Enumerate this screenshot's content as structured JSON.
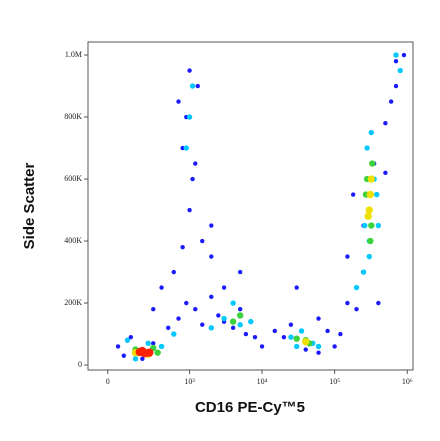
{
  "chart_data": {
    "type": "scatter",
    "x_label": "CD16 PE-Cy™5",
    "y_label": "Side Scatter",
    "xscale": "asinh",
    "xlim": [
      -100,
      1200000
    ],
    "ylim": [
      -16000,
      1042000
    ],
    "xticks": [
      0,
      {
        "value": 1000,
        "label": "10³"
      },
      {
        "value": 10000,
        "label": "10⁴"
      },
      {
        "value": 100000,
        "label": "10⁵"
      },
      {
        "value": 1000000,
        "label": "10⁶"
      }
    ],
    "yticks": [
      0,
      {
        "value": 200000,
        "label": "200K"
      },
      {
        "value": 400000,
        "label": "400K"
      },
      {
        "value": 600000,
        "label": "600K"
      },
      {
        "value": 800000,
        "label": "800K"
      },
      {
        "value": 1000000,
        "label": "1.0M"
      }
    ],
    "series": [
      {
        "color": "#1a1aff",
        "x": [
          50,
          120,
          300,
          500,
          80,
          700,
          900,
          1200,
          1500,
          2000,
          2500,
          3000,
          4000,
          5000,
          6000,
          8000,
          10000,
          15000,
          20000,
          25000,
          40000,
          60000,
          80000,
          100000,
          150000,
          200000,
          250000,
          400000,
          500000,
          700000,
          800000,
          900000,
          1000,
          1100,
          800,
          900,
          1300,
          1000,
          1200,
          700,
          600,
          1500,
          2000,
          3000,
          400,
          300,
          200,
          150000,
          120000,
          180000,
          500000,
          600000,
          700000,
          350000,
          250000,
          30000,
          60000,
          5000,
          2000,
          800
        ],
        "y": [
          60000,
          90000,
          70000,
          120000,
          30000,
          150000,
          200000,
          180000,
          130000,
          220000,
          160000,
          140000,
          120000,
          180000,
          100000,
          90000,
          60000,
          110000,
          90000,
          130000,
          50000,
          40000,
          110000,
          60000,
          200000,
          180000,
          300000,
          200000,
          780000,
          900000,
          950000,
          1000000,
          500000,
          600000,
          700000,
          800000,
          900000,
          950000,
          650000,
          850000,
          300000,
          400000,
          350000,
          250000,
          250000,
          180000,
          20000,
          350000,
          100000,
          550000,
          620000,
          850000,
          980000,
          650000,
          450000,
          250000,
          150000,
          300000,
          450000,
          380000
        ]
      },
      {
        "color": "#00c8ff",
        "x": [
          100,
          250,
          400,
          150,
          3000,
          5000,
          4000,
          7000,
          25000,
          35000,
          50000,
          60000,
          250000,
          300000,
          350000,
          280000,
          320000,
          260000,
          380000,
          300000,
          1000,
          900,
          1100,
          800000,
          700000,
          2000,
          600,
          200000,
          400000,
          30000
        ],
        "y": [
          80000,
          70000,
          60000,
          20000,
          150000,
          130000,
          200000,
          140000,
          90000,
          110000,
          70000,
          60000,
          300000,
          400000,
          600000,
          700000,
          750000,
          450000,
          550000,
          350000,
          800000,
          700000,
          900000,
          950000,
          1000000,
          120000,
          100000,
          250000,
          450000,
          60000
        ]
      },
      {
        "color": "#3cd23c",
        "x": [
          150,
          300,
          350,
          40000,
          45000,
          30000,
          300000,
          280000,
          320000,
          330000,
          270000,
          310000,
          4000,
          5000
        ],
        "y": [
          50000,
          55000,
          40000,
          80000,
          70000,
          85000,
          500000,
          600000,
          450000,
          650000,
          550000,
          400000,
          140000,
          160000
        ]
      },
      {
        "color": "#f0e000",
        "x": [
          200,
          250,
          150,
          300000,
          310000,
          290000,
          320000,
          40000
        ],
        "y": [
          45000,
          35000,
          40000,
          500000,
          550000,
          480000,
          600000,
          75000
        ]
      },
      {
        "color": "#ff2000",
        "x": [
          180,
          220,
          200,
          260
        ],
        "y": [
          42000,
          38000,
          45000,
          40000
        ]
      }
    ]
  }
}
